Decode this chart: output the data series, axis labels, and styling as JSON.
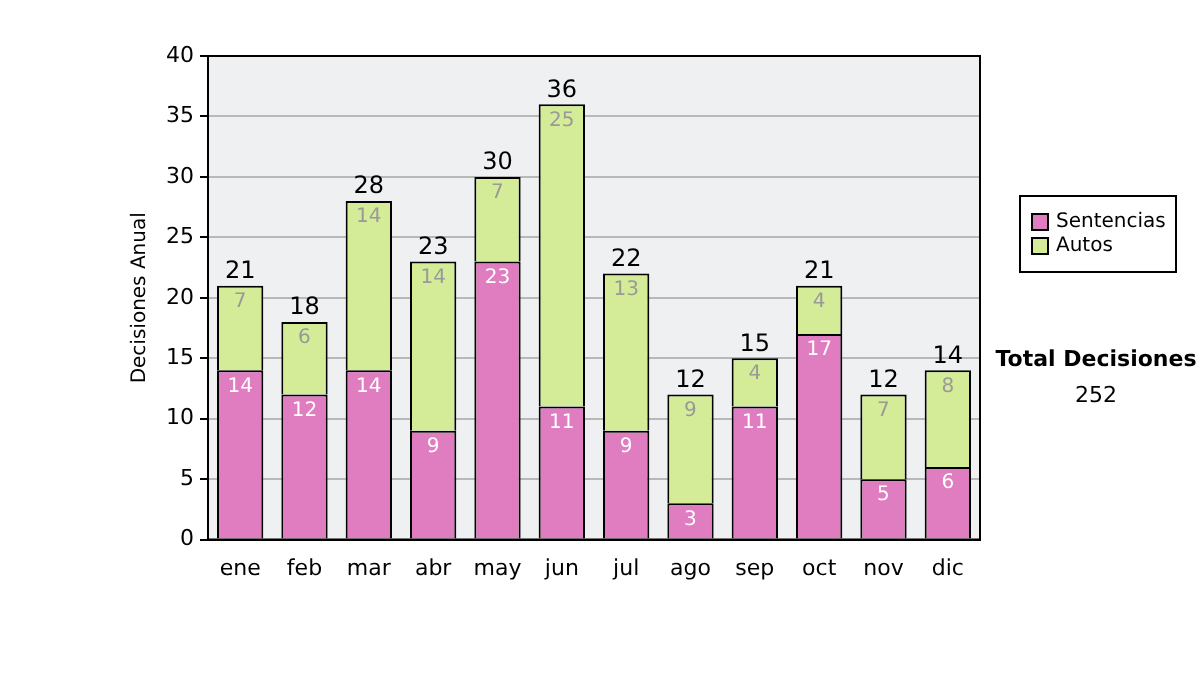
{
  "chart_data": {
    "type": "bar",
    "stacked": true,
    "ylabel": "Decisiones Anual",
    "categories": [
      "ene",
      "feb",
      "mar",
      "abr",
      "may",
      "jun",
      "jul",
      "ago",
      "sep",
      "oct",
      "nov",
      "dic"
    ],
    "series": [
      {
        "name": "Sentencias",
        "color": "#e07cc0",
        "values": [
          14,
          12,
          14,
          9,
          23,
          11,
          9,
          3,
          11,
          17,
          5,
          6
        ]
      },
      {
        "name": "Autos",
        "color": "#d4ec98",
        "values": [
          7,
          6,
          14,
          14,
          7,
          25,
          13,
          9,
          4,
          4,
          7,
          8
        ]
      }
    ],
    "totals": [
      "21",
      "18",
      "28",
      "23",
      "30",
      "36",
      "22",
      "12",
      "15",
      "21",
      "12",
      "14"
    ],
    "ylim": [
      0,
      40
    ],
    "yticks": [
      0,
      5,
      10,
      15,
      20,
      25,
      30,
      35,
      40
    ],
    "grid": "y",
    "legend": "right",
    "data_labels": true,
    "annotations": [
      "Total Decisiones",
      "252"
    ]
  }
}
